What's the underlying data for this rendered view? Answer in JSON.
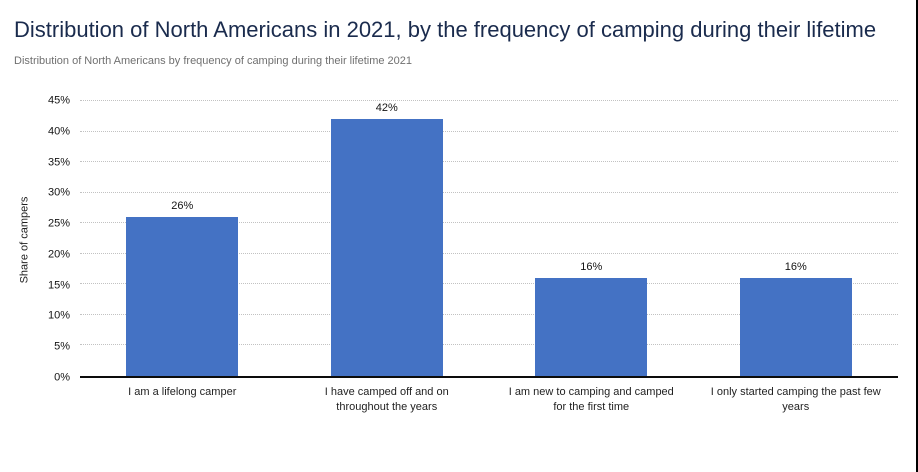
{
  "page": {
    "title": "Distribution of North Americans in 2021, by the frequency of camping during their lifetime",
    "subtitle": "Distribution of North Americans by frequency of camping during their lifetime 2021"
  },
  "colors": {
    "bar": "#4472c4",
    "title": "#1a2b4d",
    "subtitle": "#707070",
    "gridline": "#c2c2c2",
    "axis": "#0c0c0c"
  },
  "chart_data": {
    "type": "bar",
    "title": "Distribution of North Americans in 2021, by the frequency of camping during their lifetime",
    "categories": [
      "I am a lifelong camper",
      "I have camped off and on throughout the years",
      "I am new to camping and camped for the first time",
      "I only started camping the past few years"
    ],
    "values": [
      26,
      42,
      16,
      16
    ],
    "value_labels": [
      "26%",
      "42%",
      "16%",
      "16%"
    ],
    "xlabel": "",
    "ylabel": "Share of campers",
    "ylim": [
      0,
      45
    ],
    "yticks": [
      0,
      5,
      10,
      15,
      20,
      25,
      30,
      35,
      40,
      45
    ],
    "ytick_labels": [
      "0%",
      "5%",
      "10%",
      "15%",
      "20%",
      "25%",
      "30%",
      "35%",
      "40%",
      "45%"
    ],
    "grid": "horizontal-dotted",
    "legend": "none"
  }
}
